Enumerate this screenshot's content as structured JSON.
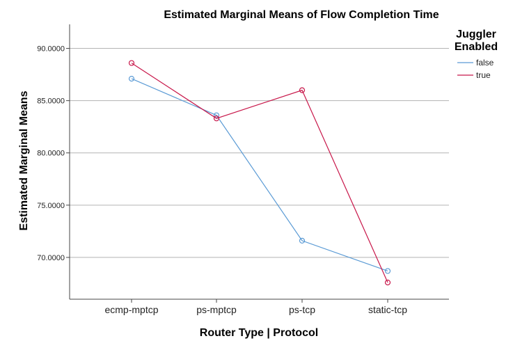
{
  "chart_data": {
    "type": "line",
    "title": "Estimated Marginal Means of Flow Completion Time",
    "xlabel": "Router Type | Protocol",
    "ylabel": "Estimated Marginal Means",
    "categories": [
      "ecmp-mptcp",
      "ps-mptcp",
      "ps-tcp",
      "static-tcp"
    ],
    "ylim": [
      66,
      92.3
    ],
    "yticks": [
      70,
      75,
      80,
      85,
      90
    ],
    "ytick_labels": [
      "70.0000",
      "75.0000",
      "80.0000",
      "85.0000",
      "90.0000"
    ],
    "grid": "horizontal",
    "legend_title": "Juggler Enabled",
    "legend_position": "top-right",
    "series": [
      {
        "name": "false",
        "color": "#5b9bd5",
        "values": [
          87.1,
          83.6,
          71.6,
          68.7
        ]
      },
      {
        "name": "true",
        "color": "#c8174a",
        "values": [
          88.6,
          83.3,
          86.0,
          67.6
        ]
      }
    ]
  }
}
